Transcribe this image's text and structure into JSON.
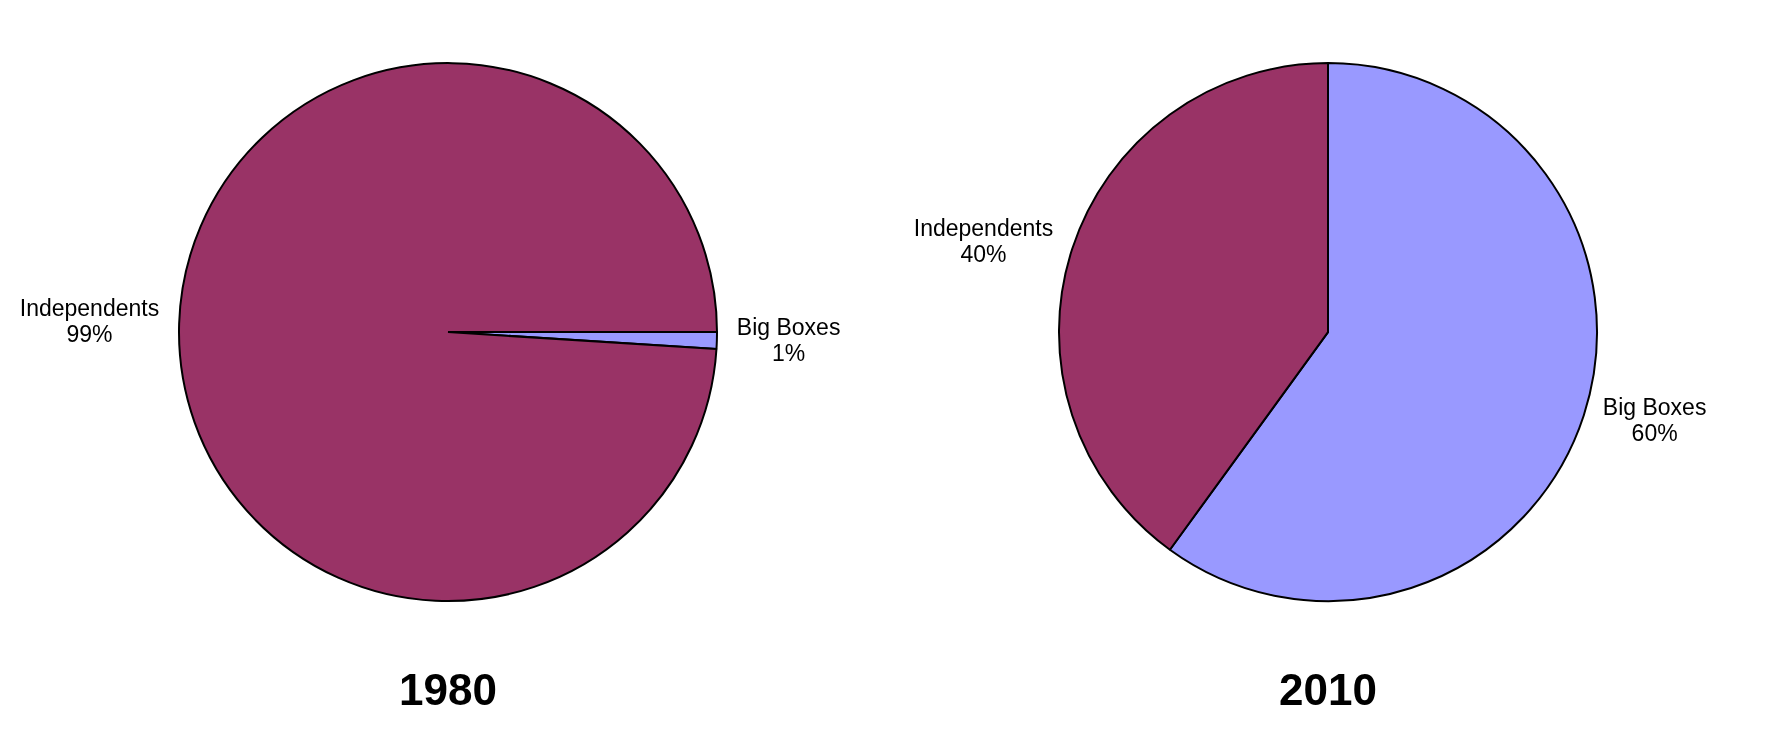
{
  "chart_data": [
    {
      "type": "pie",
      "title": "1980",
      "categories": [
        "Big Boxes",
        "Independents"
      ],
      "values": [
        1,
        99
      ],
      "colors": [
        "#9999ff",
        "#993366"
      ],
      "value_labels": [
        "1%",
        "99%"
      ]
    },
    {
      "type": "pie",
      "title": "2010",
      "categories": [
        "Big Boxes",
        "Independents"
      ],
      "values": [
        60,
        40
      ],
      "colors": [
        "#9999ff",
        "#993366"
      ],
      "value_labels": [
        "60%",
        "40%"
      ]
    }
  ]
}
